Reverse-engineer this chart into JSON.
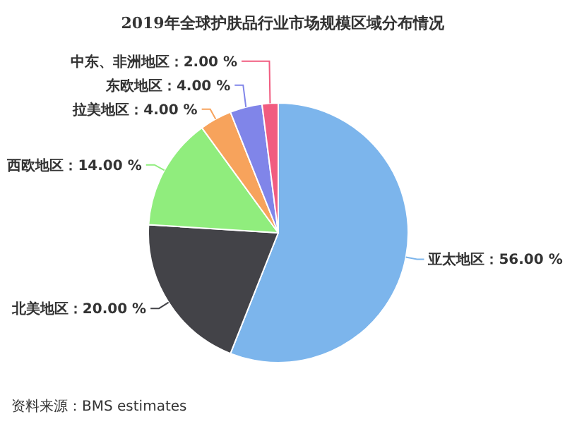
{
  "chart_data": {
    "type": "pie",
    "title": "2019年全球护肤品行业市场规模区域分布情况",
    "categories": [
      "亚太地区",
      "北美地区",
      "西欧地区",
      "拉美地区",
      "东欧地区",
      "中东、非洲地区"
    ],
    "values": [
      56,
      20,
      14,
      4,
      4,
      2
    ],
    "colors": [
      "#7cb5ec",
      "#434348",
      "#90ed7d",
      "#f7a35c",
      "#8085e9",
      "#f15c80"
    ],
    "value_labels": [
      "56.00 %",
      "20.00 %",
      "14.00 %",
      "4.00 %",
      "4.00 %",
      "2.00 %"
    ],
    "annotations": [
      "资料来源：BMS estimates"
    ]
  }
}
